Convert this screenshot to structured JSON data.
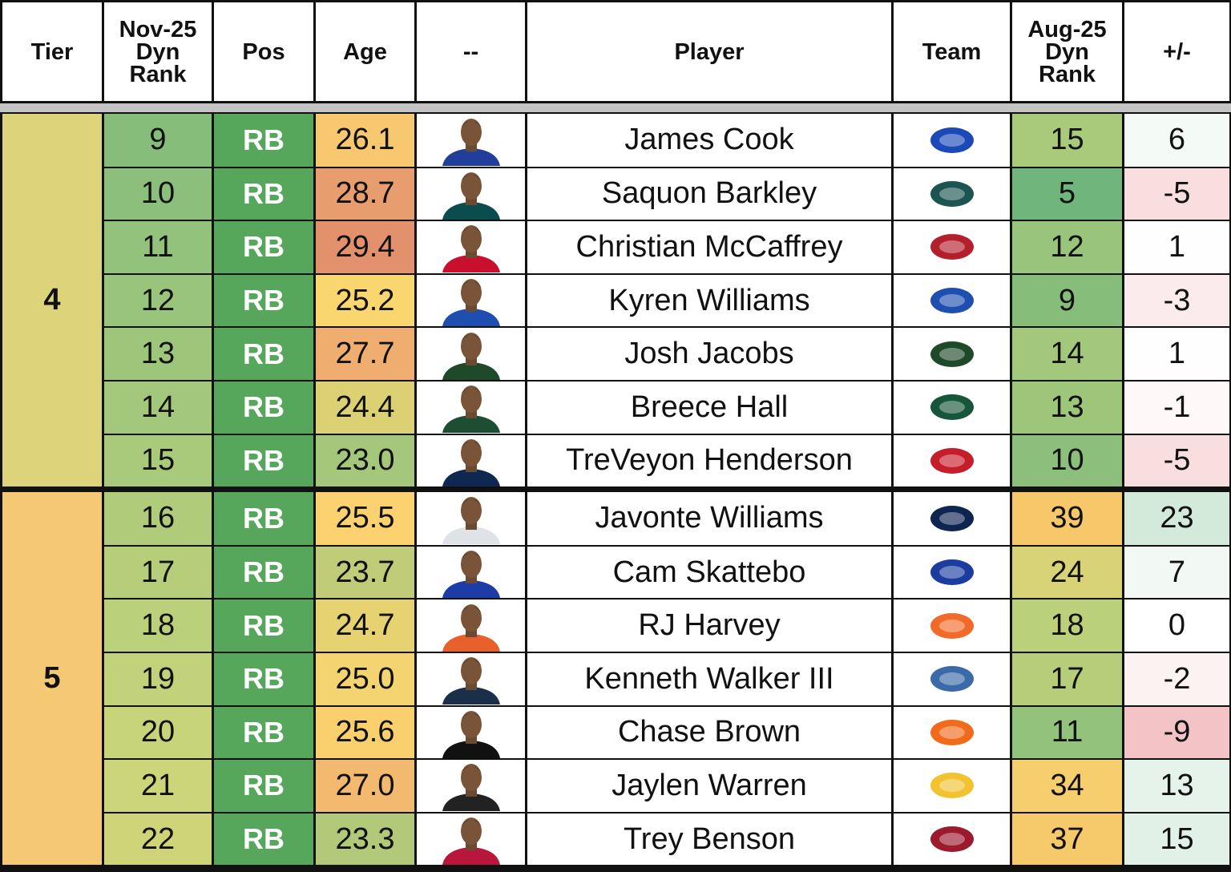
{
  "header": [
    "Tier",
    "Nov-25\nDyn\nRank",
    "Pos",
    "Age",
    "--",
    "Player",
    "Team",
    "Aug-25\nDyn\nRank",
    "+/-"
  ],
  "tiers": [
    {
      "tier": 4,
      "rows": [
        {
          "nov_rank": 9,
          "pos": "RB",
          "age": "26.1",
          "player": "James Cook",
          "aug_rank": 15,
          "change": 6
        },
        {
          "nov_rank": 10,
          "pos": "RB",
          "age": "28.7",
          "player": "Saquon Barkley",
          "aug_rank": 5,
          "change": -5
        },
        {
          "nov_rank": 11,
          "pos": "RB",
          "age": "29.4",
          "player": "Christian McCaffrey",
          "aug_rank": 12,
          "change": 1
        },
        {
          "nov_rank": 12,
          "pos": "RB",
          "age": "25.2",
          "player": "Kyren Williams",
          "aug_rank": 9,
          "change": -3
        },
        {
          "nov_rank": 13,
          "pos": "RB",
          "age": "27.7",
          "player": "Josh Jacobs",
          "aug_rank": 14,
          "change": 1
        },
        {
          "nov_rank": 14,
          "pos": "RB",
          "age": "24.4",
          "player": "Breece Hall",
          "aug_rank": 13,
          "change": -1
        },
        {
          "nov_rank": 15,
          "pos": "RB",
          "age": "23.0",
          "player": "TreVeyon Henderson",
          "aug_rank": 10,
          "change": -5
        }
      ]
    },
    {
      "tier": 5,
      "rows": [
        {
          "nov_rank": 16,
          "pos": "RB",
          "age": "25.5",
          "player": "Javonte Williams",
          "aug_rank": 39,
          "change": 23
        },
        {
          "nov_rank": 17,
          "pos": "RB",
          "age": "23.7",
          "player": "Cam Skattebo",
          "aug_rank": 24,
          "change": 7
        },
        {
          "nov_rank": 18,
          "pos": "RB",
          "age": "24.7",
          "player": "RJ Harvey",
          "aug_rank": 18,
          "change": 0
        },
        {
          "nov_rank": 19,
          "pos": "RB",
          "age": "25.0",
          "player": "Kenneth Walker III",
          "aug_rank": 17,
          "change": -2
        },
        {
          "nov_rank": 20,
          "pos": "RB",
          "age": "25.6",
          "player": "Chase Brown",
          "aug_rank": 11,
          "change": -9
        },
        {
          "nov_rank": 21,
          "pos": "RB",
          "age": "27.0",
          "player": "Jaylen Warren",
          "aug_rank": 34,
          "change": 13
        },
        {
          "nov_rank": 22,
          "pos": "RB",
          "age": "23.3",
          "player": "Trey Benson",
          "aug_rank": 37,
          "change": 15
        }
      ]
    }
  ]
}
